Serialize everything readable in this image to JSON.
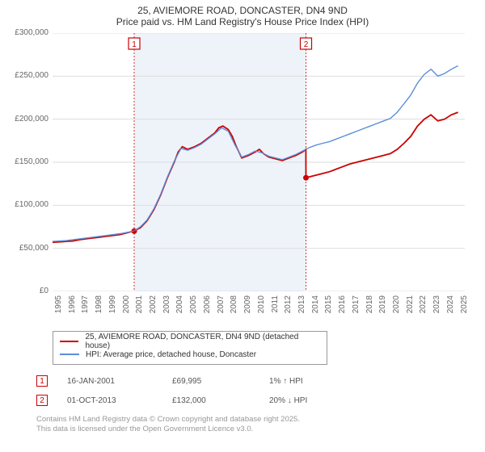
{
  "title": {
    "line1": "25, AVIEMORE ROAD, DONCASTER, DN4 9ND",
    "line2": "Price paid vs. HM Land Registry's House Price Index (HPI)"
  },
  "chart": {
    "type": "line",
    "background_color": "#ffffff",
    "grid_color": "#dddddd",
    "shade_color": "#eef3fa",
    "x_years": [
      1995,
      1996,
      1997,
      1998,
      1999,
      2000,
      2001,
      2002,
      2003,
      2004,
      2005,
      2006,
      2007,
      2008,
      2009,
      2010,
      2011,
      2012,
      2013,
      2014,
      2015,
      2016,
      2017,
      2018,
      2019,
      2020,
      2021,
      2022,
      2023,
      2024,
      2025
    ],
    "xlim": [
      1995,
      2025.5
    ],
    "ylim": [
      0,
      300000
    ],
    "ytick_step": 50000,
    "ytick_labels": [
      "£0",
      "£50,000",
      "£100,000",
      "£150,000",
      "£200,000",
      "£250,000",
      "£300,000"
    ],
    "shade_range": [
      2001.04,
      2013.75
    ],
    "series": [
      {
        "name": "property",
        "color": "#cc0000",
        "width": 1.8,
        "dots_at": [
          [
            2001.04,
            69995
          ],
          [
            2013.75,
            132000
          ]
        ],
        "points": [
          [
            1995.0,
            57000
          ],
          [
            1995.5,
            57500
          ],
          [
            1996.0,
            58000
          ],
          [
            1996.5,
            58500
          ],
          [
            1997.0,
            60000
          ],
          [
            1997.5,
            61000
          ],
          [
            1998.0,
            62000
          ],
          [
            1998.5,
            63000
          ],
          [
            1999.0,
            64000
          ],
          [
            1999.5,
            65000
          ],
          [
            2000.0,
            66000
          ],
          [
            2000.5,
            68000
          ],
          [
            2001.0,
            69995
          ],
          [
            2001.5,
            74000
          ],
          [
            2002.0,
            82000
          ],
          [
            2002.5,
            95000
          ],
          [
            2003.0,
            112000
          ],
          [
            2003.5,
            132000
          ],
          [
            2004.0,
            150000
          ],
          [
            2004.3,
            162000
          ],
          [
            2004.6,
            168000
          ],
          [
            2005.0,
            165000
          ],
          [
            2005.5,
            168000
          ],
          [
            2006.0,
            172000
          ],
          [
            2006.5,
            178000
          ],
          [
            2007.0,
            184000
          ],
          [
            2007.3,
            190000
          ],
          [
            2007.6,
            192000
          ],
          [
            2008.0,
            188000
          ],
          [
            2008.3,
            180000
          ],
          [
            2008.6,
            168000
          ],
          [
            2009.0,
            155000
          ],
          [
            2009.5,
            158000
          ],
          [
            2010.0,
            162000
          ],
          [
            2010.3,
            165000
          ],
          [
            2010.6,
            160000
          ],
          [
            2011.0,
            156000
          ],
          [
            2011.5,
            154000
          ],
          [
            2012.0,
            152000
          ],
          [
            2012.5,
            155000
          ],
          [
            2013.0,
            158000
          ],
          [
            2013.5,
            162000
          ],
          [
            2013.74,
            165000
          ],
          [
            2013.75,
            132000
          ],
          [
            2014.0,
            133000
          ],
          [
            2014.5,
            135000
          ],
          [
            2015.0,
            137000
          ],
          [
            2015.5,
            139000
          ],
          [
            2016.0,
            142000
          ],
          [
            2016.5,
            145000
          ],
          [
            2017.0,
            148000
          ],
          [
            2017.5,
            150000
          ],
          [
            2018.0,
            152000
          ],
          [
            2018.5,
            154000
          ],
          [
            2019.0,
            156000
          ],
          [
            2019.5,
            158000
          ],
          [
            2020.0,
            160000
          ],
          [
            2020.5,
            165000
          ],
          [
            2021.0,
            172000
          ],
          [
            2021.5,
            180000
          ],
          [
            2022.0,
            192000
          ],
          [
            2022.5,
            200000
          ],
          [
            2023.0,
            205000
          ],
          [
            2023.5,
            198000
          ],
          [
            2024.0,
            200000
          ],
          [
            2024.5,
            205000
          ],
          [
            2025.0,
            208000
          ]
        ]
      },
      {
        "name": "hpi",
        "color": "#5b8fd9",
        "width": 1.4,
        "points": [
          [
            1995.0,
            58000
          ],
          [
            1996.0,
            59000
          ],
          [
            1997.0,
            61000
          ],
          [
            1998.0,
            63000
          ],
          [
            1999.0,
            65000
          ],
          [
            2000.0,
            67000
          ],
          [
            2001.0,
            70000
          ],
          [
            2001.5,
            75000
          ],
          [
            2002.0,
            83000
          ],
          [
            2002.5,
            96000
          ],
          [
            2003.0,
            113000
          ],
          [
            2003.5,
            133000
          ],
          [
            2004.0,
            151000
          ],
          [
            2004.5,
            166000
          ],
          [
            2005.0,
            164000
          ],
          [
            2005.5,
            167000
          ],
          [
            2006.0,
            171000
          ],
          [
            2006.5,
            177000
          ],
          [
            2007.0,
            183000
          ],
          [
            2007.5,
            190000
          ],
          [
            2008.0,
            186000
          ],
          [
            2008.5,
            170000
          ],
          [
            2009.0,
            156000
          ],
          [
            2009.5,
            159000
          ],
          [
            2010.0,
            163000
          ],
          [
            2010.5,
            161000
          ],
          [
            2011.0,
            157000
          ],
          [
            2011.5,
            155000
          ],
          [
            2012.0,
            153000
          ],
          [
            2012.5,
            156000
          ],
          [
            2013.0,
            159000
          ],
          [
            2013.5,
            163000
          ],
          [
            2013.75,
            165000
          ],
          [
            2014.0,
            167000
          ],
          [
            2014.5,
            170000
          ],
          [
            2015.0,
            172000
          ],
          [
            2015.5,
            174000
          ],
          [
            2016.0,
            177000
          ],
          [
            2016.5,
            180000
          ],
          [
            2017.0,
            183000
          ],
          [
            2017.5,
            186000
          ],
          [
            2018.0,
            189000
          ],
          [
            2018.5,
            192000
          ],
          [
            2019.0,
            195000
          ],
          [
            2019.5,
            198000
          ],
          [
            2020.0,
            201000
          ],
          [
            2020.5,
            208000
          ],
          [
            2021.0,
            218000
          ],
          [
            2021.5,
            228000
          ],
          [
            2022.0,
            242000
          ],
          [
            2022.5,
            252000
          ],
          [
            2023.0,
            258000
          ],
          [
            2023.5,
            250000
          ],
          [
            2024.0,
            253000
          ],
          [
            2024.5,
            258000
          ],
          [
            2025.0,
            262000
          ]
        ]
      }
    ],
    "event_markers": [
      {
        "num": "1",
        "x": 2001.04
      },
      {
        "num": "2",
        "x": 2013.75
      }
    ]
  },
  "legend": {
    "items": [
      {
        "color": "#cc0000",
        "label": "25, AVIEMORE ROAD, DONCASTER, DN4 9ND (detached house)"
      },
      {
        "color": "#5b8fd9",
        "label": "HPI: Average price, detached house, Doncaster"
      }
    ]
  },
  "events": [
    {
      "num": "1",
      "date": "16-JAN-2001",
      "price": "£69,995",
      "delta": "1% ↑ HPI"
    },
    {
      "num": "2",
      "date": "01-OCT-2013",
      "price": "£132,000",
      "delta": "20% ↓ HPI"
    }
  ],
  "footnote": {
    "line1": "Contains HM Land Registry data © Crown copyright and database right 2025.",
    "line2": "This data is licensed under the Open Government Licence v3.0."
  }
}
